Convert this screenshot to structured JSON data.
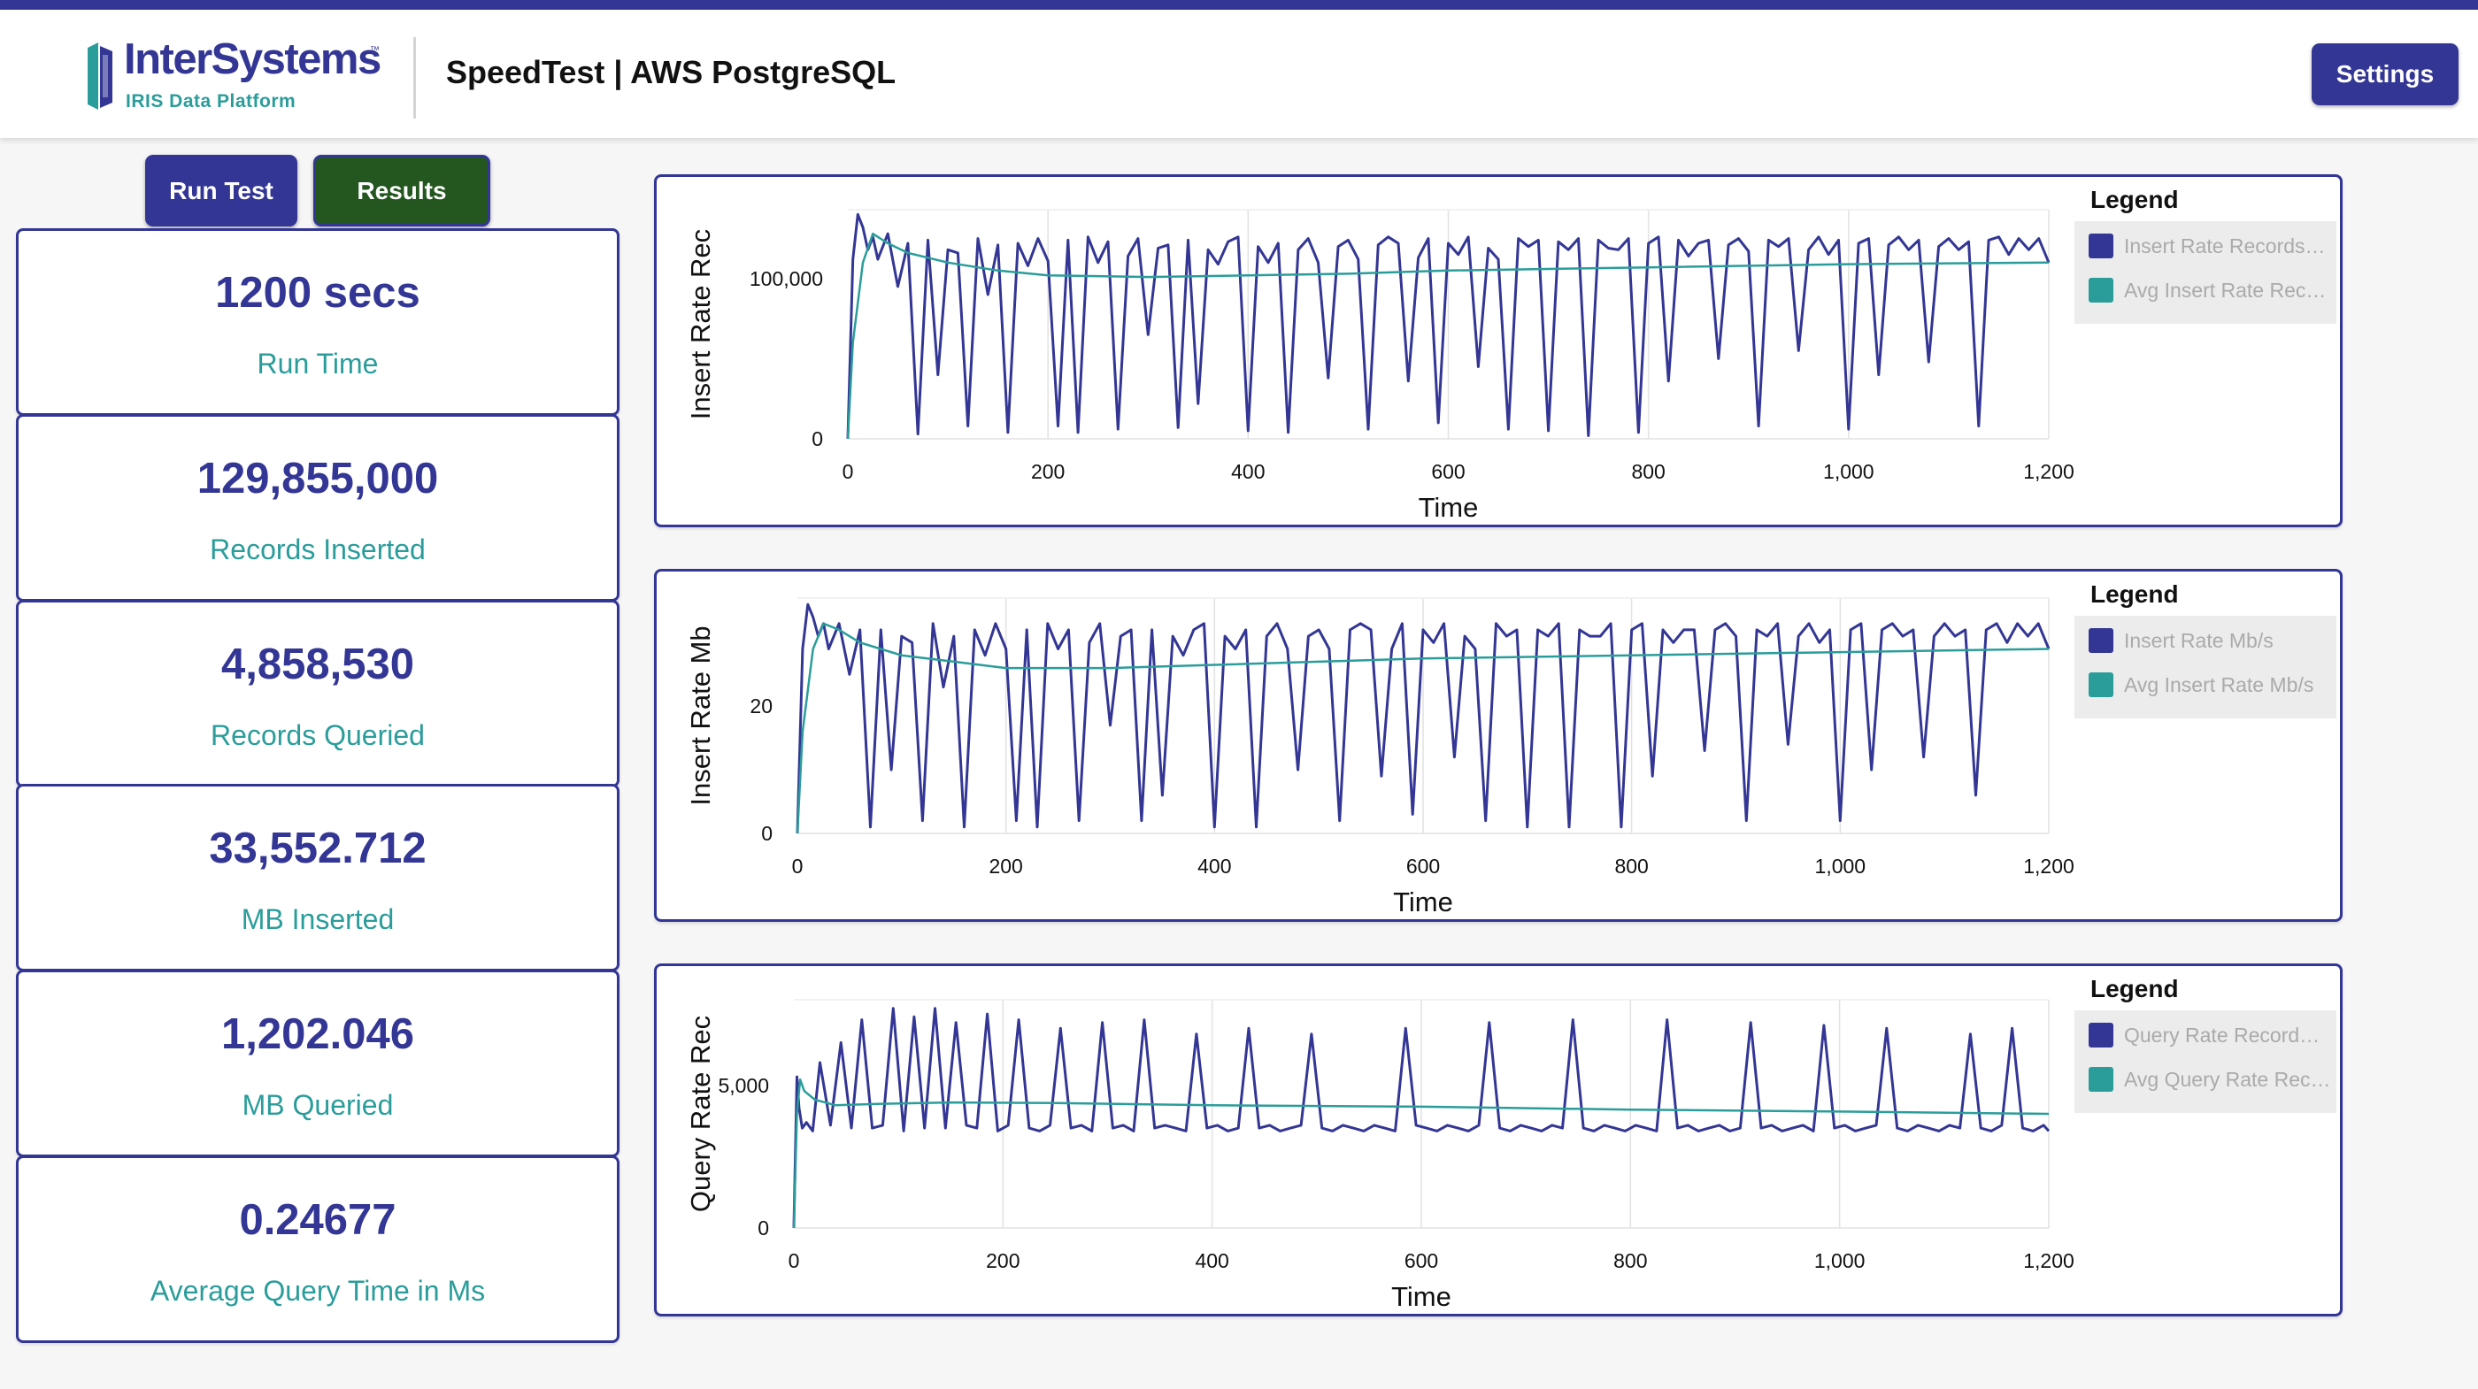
{
  "header": {
    "logo_name": "InterSystems",
    "logo_tm": "™",
    "logo_sub": "IRIS Data Platform",
    "title": "SpeedTest | AWS PostgreSQL",
    "settings_label": "Settings"
  },
  "actions": {
    "run_test_label": "Run Test",
    "results_label": "Results"
  },
  "stats": [
    {
      "value": "1200 secs",
      "label": "Run Time"
    },
    {
      "value": "129,855,000",
      "label": "Records Inserted"
    },
    {
      "value": "4,858,530",
      "label": "Records Queried"
    },
    {
      "value": "33,552.712",
      "label": "MB Inserted"
    },
    {
      "value": "1,202.046",
      "label": "MB Queried"
    },
    {
      "value": "0.24677",
      "label": "Average Query Time in Ms"
    }
  ],
  "colors": {
    "primary": "#333694",
    "accent": "#2a9d9a",
    "results_button": "#24561f",
    "background": "#f6f6f6"
  },
  "chart_data": [
    {
      "type": "line",
      "ylabel": "Insert Rate Rec",
      "xlabel": "Time",
      "xlim": [
        0,
        1200
      ],
      "ylim": [
        0,
        143000
      ],
      "xticks": [
        0,
        200,
        400,
        600,
        800,
        1000,
        1200
      ],
      "xtick_labels": [
        "0",
        "200",
        "400",
        "600",
        "800",
        "1,000",
        "1,200"
      ],
      "yticks": [
        0,
        100000
      ],
      "ytick_labels": [
        "0",
        "100,000"
      ],
      "legend_title": "Legend",
      "legend_position": "right",
      "series": [
        {
          "name": "Insert Rate Records…",
          "color": "#333694",
          "x": [
            0,
            5,
            10,
            15,
            20,
            25,
            30,
            40,
            50,
            60,
            70,
            80,
            90,
            100,
            110,
            120,
            130,
            140,
            150,
            160,
            170,
            180,
            190,
            200,
            210,
            220,
            230,
            240,
            250,
            260,
            270,
            280,
            290,
            300,
            310,
            320,
            330,
            340,
            350,
            360,
            370,
            380,
            390,
            400,
            410,
            420,
            430,
            440,
            450,
            460,
            470,
            480,
            490,
            500,
            510,
            520,
            530,
            540,
            550,
            560,
            570,
            580,
            590,
            600,
            610,
            620,
            630,
            640,
            650,
            660,
            670,
            680,
            690,
            700,
            710,
            720,
            730,
            740,
            750,
            760,
            770,
            780,
            790,
            800,
            810,
            820,
            830,
            840,
            850,
            860,
            870,
            880,
            890,
            900,
            910,
            920,
            930,
            940,
            950,
            960,
            970,
            980,
            990,
            1000,
            1010,
            1020,
            1030,
            1040,
            1050,
            1060,
            1070,
            1080,
            1090,
            1100,
            1110,
            1120,
            1130,
            1140,
            1150,
            1160,
            1170,
            1180,
            1190,
            1200
          ],
          "y": [
            0,
            112000,
            140000,
            132000,
            118000,
            126000,
            112000,
            128000,
            95000,
            122000,
            3000,
            124000,
            40000,
            118000,
            116000,
            8000,
            125000,
            90000,
            121000,
            4000,
            122000,
            108000,
            125000,
            111000,
            8000,
            124000,
            4000,
            126000,
            110000,
            123000,
            6000,
            114000,
            125000,
            65000,
            119000,
            121000,
            7000,
            124000,
            22000,
            118000,
            109000,
            123000,
            126000,
            5000,
            120000,
            110000,
            122000,
            4000,
            118000,
            125000,
            110000,
            38000,
            120000,
            124000,
            112000,
            6000,
            121000,
            126000,
            122000,
            36000,
            113000,
            125000,
            10000,
            122000,
            115000,
            126000,
            45000,
            119000,
            112000,
            6000,
            125000,
            120000,
            124000,
            5000,
            123000,
            118000,
            125000,
            2000,
            124000,
            119000,
            118000,
            125000,
            4000,
            122000,
            126000,
            36000,
            124000,
            114000,
            122000,
            124000,
            50000,
            121000,
            125000,
            117000,
            8000,
            124000,
            120000,
            125000,
            55000,
            118000,
            126000,
            115000,
            124000,
            6000,
            122000,
            125000,
            40000,
            121000,
            126000,
            118000,
            124000,
            48000,
            120000,
            125000,
            118000,
            123000,
            8000,
            124000,
            126000,
            115000,
            125000,
            118000,
            125000,
            110000
          ]
        },
        {
          "name": "Avg Insert Rate Rec…",
          "color": "#2a9d9a",
          "x": [
            0,
            5,
            15,
            25,
            40,
            60,
            80,
            100,
            150,
            200,
            300,
            400,
            500,
            600,
            800,
            1000,
            1200
          ],
          "y": [
            0,
            60000,
            110000,
            128000,
            122000,
            116000,
            113000,
            110000,
            105000,
            102000,
            101000,
            102000,
            103000,
            105000,
            107000,
            109000,
            110000
          ]
        }
      ]
    },
    {
      "type": "line",
      "ylabel": "Insert Rate Mb",
      "xlabel": "Time",
      "xlim": [
        0,
        1200
      ],
      "ylim": [
        0,
        37
      ],
      "xticks": [
        0,
        200,
        400,
        600,
        800,
        1000,
        1200
      ],
      "xtick_labels": [
        "0",
        "200",
        "400",
        "600",
        "800",
        "1,000",
        "1,200"
      ],
      "yticks": [
        0,
        20
      ],
      "ytick_labels": [
        "0",
        "20"
      ],
      "legend_title": "Legend",
      "legend_position": "right",
      "series": [
        {
          "name": "Insert Rate Mb/s",
          "color": "#333694",
          "x": [
            0,
            5,
            10,
            15,
            20,
            25,
            30,
            40,
            50,
            60,
            70,
            80,
            90,
            100,
            110,
            120,
            130,
            140,
            150,
            160,
            170,
            180,
            190,
            200,
            210,
            220,
            230,
            240,
            250,
            260,
            270,
            280,
            290,
            300,
            310,
            320,
            330,
            340,
            350,
            360,
            370,
            380,
            390,
            400,
            410,
            420,
            430,
            440,
            450,
            460,
            470,
            480,
            490,
            500,
            510,
            520,
            530,
            540,
            550,
            560,
            570,
            580,
            590,
            600,
            610,
            620,
            630,
            640,
            650,
            660,
            670,
            680,
            690,
            700,
            710,
            720,
            730,
            740,
            750,
            760,
            770,
            780,
            790,
            800,
            810,
            820,
            830,
            840,
            850,
            860,
            870,
            880,
            890,
            900,
            910,
            920,
            930,
            940,
            950,
            960,
            970,
            980,
            990,
            1000,
            1010,
            1020,
            1030,
            1040,
            1050,
            1060,
            1070,
            1080,
            1090,
            1100,
            1110,
            1120,
            1130,
            1140,
            1150,
            1160,
            1170,
            1180,
            1190,
            1200
          ],
          "y": [
            0,
            29,
            36,
            34,
            31,
            33,
            29,
            33,
            25,
            32,
            1,
            32,
            10,
            31,
            30,
            2,
            33,
            23,
            31,
            1,
            32,
            28,
            33,
            29,
            2,
            32,
            1,
            33,
            29,
            32,
            2,
            30,
            33,
            17,
            31,
            32,
            2,
            32,
            6,
            31,
            28,
            32,
            33,
            1,
            31,
            29,
            32,
            1,
            31,
            33,
            29,
            10,
            31,
            32,
            29,
            2,
            32,
            33,
            32,
            9,
            29,
            33,
            3,
            32,
            30,
            33,
            12,
            31,
            29,
            2,
            33,
            31,
            32,
            1,
            32,
            31,
            33,
            1,
            32,
            31,
            31,
            33,
            1,
            32,
            33,
            9,
            32,
            30,
            32,
            32,
            13,
            32,
            33,
            31,
            2,
            32,
            31,
            33,
            14,
            31,
            33,
            30,
            32,
            2,
            32,
            33,
            10,
            32,
            33,
            31,
            32,
            12,
            31,
            33,
            31,
            32,
            6,
            32,
            33,
            30,
            33,
            31,
            33,
            29
          ]
        },
        {
          "name": "Avg Insert Rate Mb/s",
          "color": "#2a9d9a",
          "x": [
            0,
            5,
            15,
            25,
            40,
            60,
            80,
            100,
            150,
            200,
            300,
            400,
            500,
            600,
            800,
            1000,
            1200
          ],
          "y": [
            0,
            16,
            29,
            33,
            32,
            30,
            29,
            28,
            27,
            26,
            26,
            26.5,
            27,
            27.5,
            28,
            28.5,
            29
          ]
        }
      ]
    },
    {
      "type": "line",
      "ylabel": "Query Rate Rec",
      "xlabel": "Time",
      "xlim": [
        0,
        1200
      ],
      "ylim": [
        0,
        8000
      ],
      "xticks": [
        0,
        200,
        400,
        600,
        800,
        1000,
        1200
      ],
      "xtick_labels": [
        "0",
        "200",
        "400",
        "600",
        "800",
        "1,000",
        "1,200"
      ],
      "yticks": [
        0,
        5000
      ],
      "ytick_labels": [
        "0",
        "5,000"
      ],
      "legend_title": "Legend",
      "legend_position": "right",
      "series": [
        {
          "name": "Query Rate Record…",
          "color": "#333694",
          "x": [
            0,
            3,
            5,
            8,
            12,
            18,
            25,
            35,
            45,
            55,
            65,
            75,
            85,
            95,
            105,
            115,
            125,
            135,
            145,
            155,
            165,
            175,
            185,
            195,
            205,
            215,
            225,
            235,
            245,
            255,
            265,
            275,
            285,
            295,
            305,
            315,
            325,
            335,
            345,
            355,
            365,
            375,
            385,
            395,
            405,
            415,
            425,
            435,
            445,
            455,
            465,
            475,
            485,
            495,
            505,
            515,
            525,
            535,
            545,
            555,
            565,
            575,
            585,
            595,
            605,
            615,
            625,
            635,
            645,
            655,
            665,
            675,
            685,
            695,
            705,
            715,
            725,
            735,
            745,
            755,
            765,
            775,
            785,
            795,
            805,
            815,
            825,
            835,
            845,
            855,
            865,
            875,
            885,
            895,
            905,
            915,
            925,
            935,
            945,
            955,
            965,
            975,
            985,
            995,
            1005,
            1015,
            1025,
            1035,
            1045,
            1055,
            1065,
            1075,
            1085,
            1095,
            1105,
            1115,
            1125,
            1135,
            1145,
            1155,
            1165,
            1175,
            1185,
            1195,
            1200
          ],
          "y": [
            0,
            5300,
            4200,
            3500,
            3700,
            3400,
            5800,
            3600,
            6500,
            3500,
            7300,
            3500,
            3600,
            7700,
            3400,
            7400,
            3500,
            7700,
            3500,
            7200,
            3600,
            3500,
            7500,
            3400,
            3600,
            7300,
            3500,
            3400,
            3600,
            7000,
            3500,
            3600,
            3400,
            7200,
            3500,
            3600,
            3400,
            7300,
            3500,
            3600,
            3500,
            3400,
            6800,
            3500,
            3600,
            3400,
            3500,
            7000,
            3500,
            3600,
            3400,
            3500,
            3600,
            6800,
            3500,
            3400,
            3600,
            3500,
            3400,
            3600,
            3500,
            3400,
            7000,
            3600,
            3500,
            3400,
            3600,
            3500,
            3400,
            3600,
            7200,
            3500,
            3400,
            3600,
            3500,
            3400,
            3600,
            3500,
            7300,
            3500,
            3400,
            3600,
            3500,
            3400,
            3600,
            3500,
            3400,
            7300,
            3500,
            3600,
            3400,
            3500,
            3600,
            3400,
            3500,
            7200,
            3500,
            3600,
            3400,
            3500,
            3600,
            3400,
            7100,
            3500,
            3600,
            3400,
            3500,
            3600,
            7000,
            3500,
            3400,
            3600,
            3500,
            3400,
            3600,
            3500,
            6800,
            3500,
            3400,
            3600,
            7000,
            3500,
            3400,
            3600,
            3400
          ]
        },
        {
          "name": "Avg Query Rate Rec…",
          "color": "#2a9d9a",
          "x": [
            0,
            3,
            6,
            10,
            20,
            40,
            80,
            150,
            250,
            400,
            600,
            800,
            1000,
            1200
          ],
          "y": [
            0,
            4000,
            5200,
            4800,
            4500,
            4300,
            4350,
            4400,
            4380,
            4300,
            4250,
            4150,
            4080,
            4000
          ]
        }
      ]
    }
  ]
}
